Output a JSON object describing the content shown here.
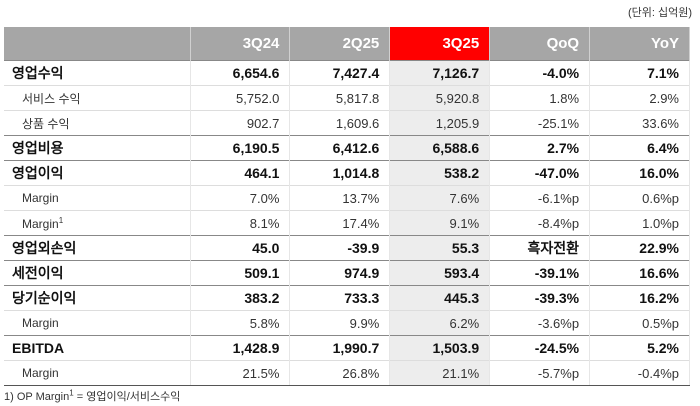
{
  "unit_note": "(단위: 십억원)",
  "table": {
    "columns": [
      "3Q24",
      "2Q25",
      "3Q25",
      "QoQ",
      "YoY"
    ],
    "highlight_column": 2,
    "rows": [
      {
        "label": "영업수익",
        "bold": true,
        "cells": [
          "6,654.6",
          "7,427.4",
          "7,126.7",
          "-4.0%",
          "7.1%"
        ]
      },
      {
        "label": "서비스 수익",
        "indent": true,
        "cells": [
          "5,752.0",
          "5,817.8",
          "5,920.8",
          "1.8%",
          "2.9%"
        ]
      },
      {
        "label": "상품 수익",
        "indent": true,
        "cells": [
          "902.7",
          "1,609.6",
          "1,205.9",
          "-25.1%",
          "33.6%"
        ]
      },
      {
        "label": "영업비용",
        "bold": true,
        "cells": [
          "6,190.5",
          "6,412.6",
          "6,588.6",
          "2.7%",
          "6.4%"
        ]
      },
      {
        "label": "영업이익",
        "bold": true,
        "cells": [
          "464.1",
          "1,014.8",
          "538.2",
          "-47.0%",
          "16.0%"
        ]
      },
      {
        "label": "Margin",
        "indent": true,
        "cells": [
          "7.0%",
          "13.7%",
          "7.6%",
          "-6.1%p",
          "0.6%p"
        ]
      },
      {
        "label": "Margin",
        "sup": "1",
        "indent": true,
        "cells": [
          "8.1%",
          "17.4%",
          "9.1%",
          "-8.4%p",
          "1.0%p"
        ]
      },
      {
        "label": "영업외손익",
        "bold": true,
        "cells": [
          "45.0",
          "-39.9",
          "55.3",
          "흑자전환",
          "22.9%"
        ]
      },
      {
        "label": "세전이익",
        "bold": true,
        "cells": [
          "509.1",
          "974.9",
          "593.4",
          "-39.1%",
          "16.6%"
        ]
      },
      {
        "label": "당기순이익",
        "bold": true,
        "cells": [
          "383.2",
          "733.3",
          "445.3",
          "-39.3%",
          "16.2%"
        ]
      },
      {
        "label": "Margin",
        "indent": true,
        "cells": [
          "5.8%",
          "9.9%",
          "6.2%",
          "-3.6%p",
          "0.5%p"
        ]
      },
      {
        "label": "EBITDA",
        "bold": true,
        "cells": [
          "1,428.9",
          "1,990.7",
          "1,503.9",
          "-24.5%",
          "5.2%"
        ]
      },
      {
        "label": "Margin",
        "indent": true,
        "cells": [
          "21.5%",
          "26.8%",
          "21.1%",
          "-5.7%p",
          "-0.4%p"
        ]
      }
    ]
  },
  "footnote": {
    "prefix": "1) OP Margin",
    "sup": "1",
    "suffix": " = 영업이익/서비스수익"
  }
}
